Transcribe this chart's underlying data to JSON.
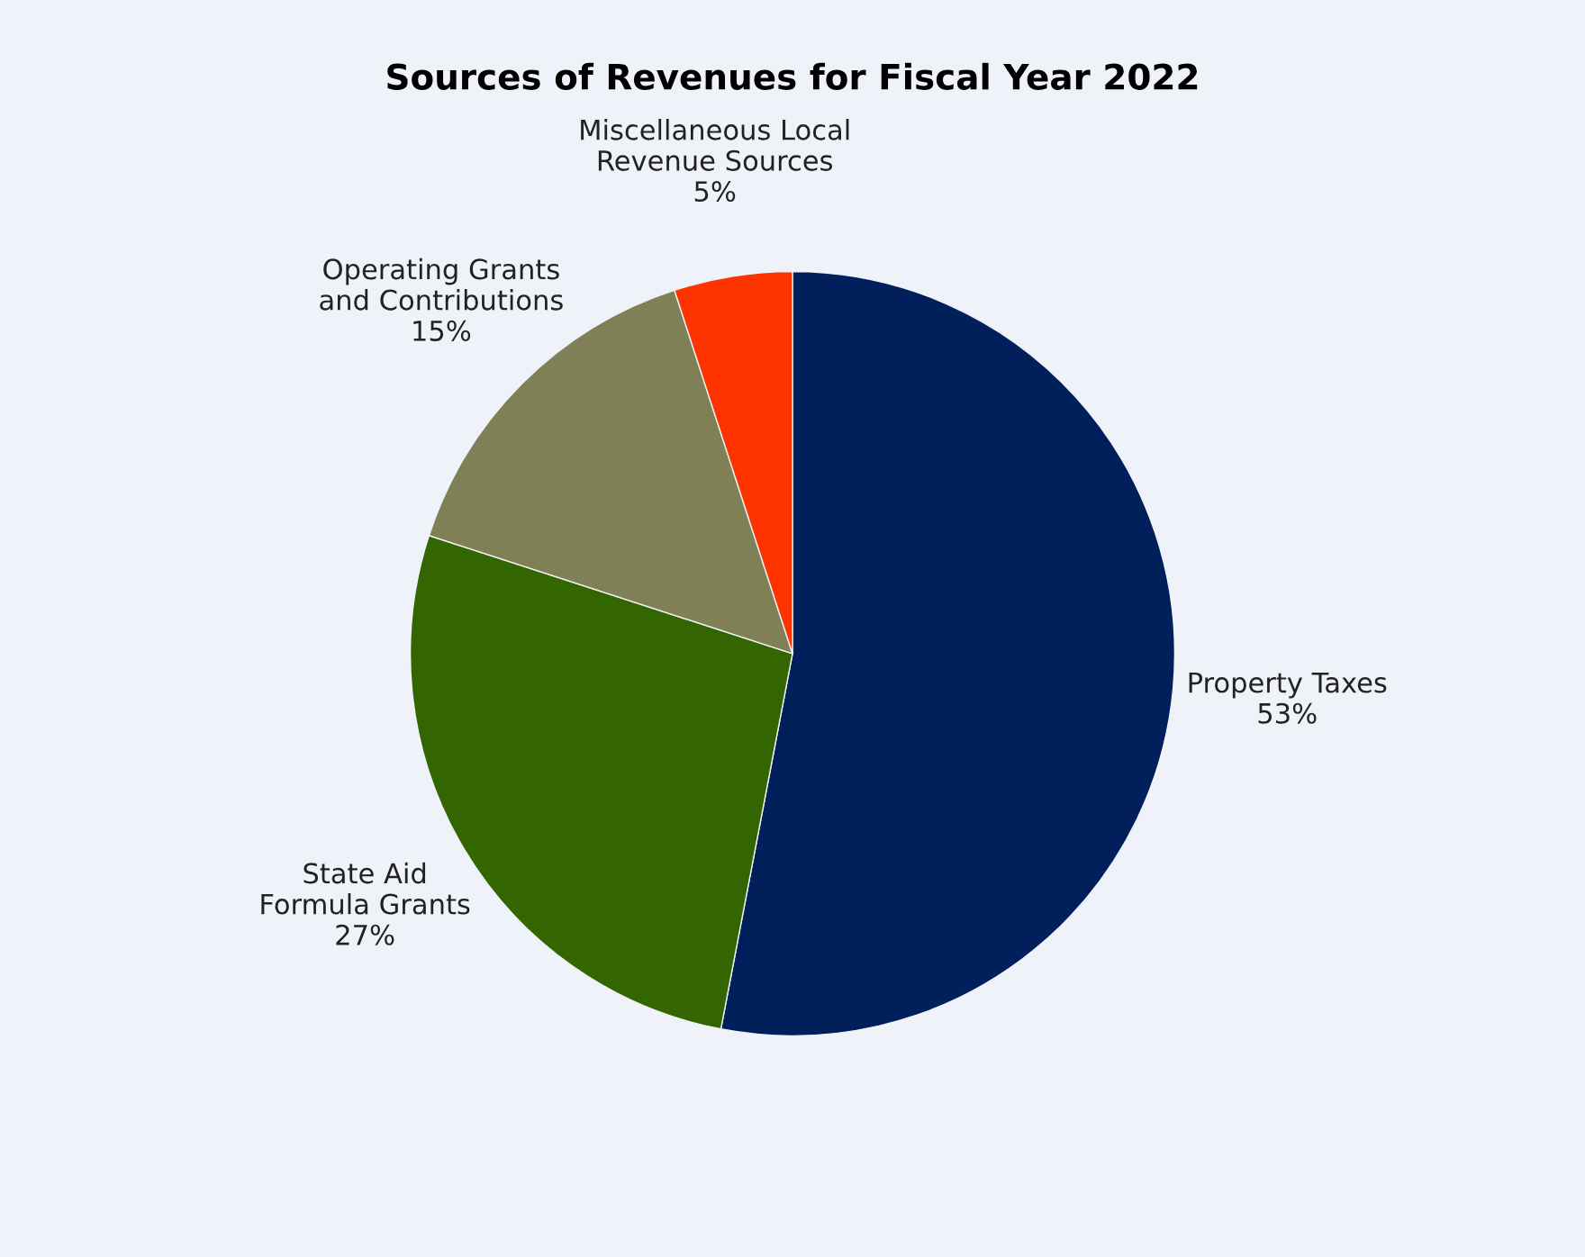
{
  "chart_data": {
    "type": "pie",
    "title": "Sources of Revenues for Fiscal Year 2022",
    "categories": [
      "Property Taxes",
      "State Aid\nFormula Grants",
      "Operating Grants\nand Contributions",
      "Miscellaneous Local\nRevenue Sources"
    ],
    "values": [
      53,
      27,
      15,
      5
    ],
    "value_labels": [
      "53%",
      "27%",
      "15%",
      "5%"
    ],
    "colors": [
      "#001f5b",
      "#336600",
      "#7f8055",
      "#ff3300"
    ],
    "legend": false
  }
}
